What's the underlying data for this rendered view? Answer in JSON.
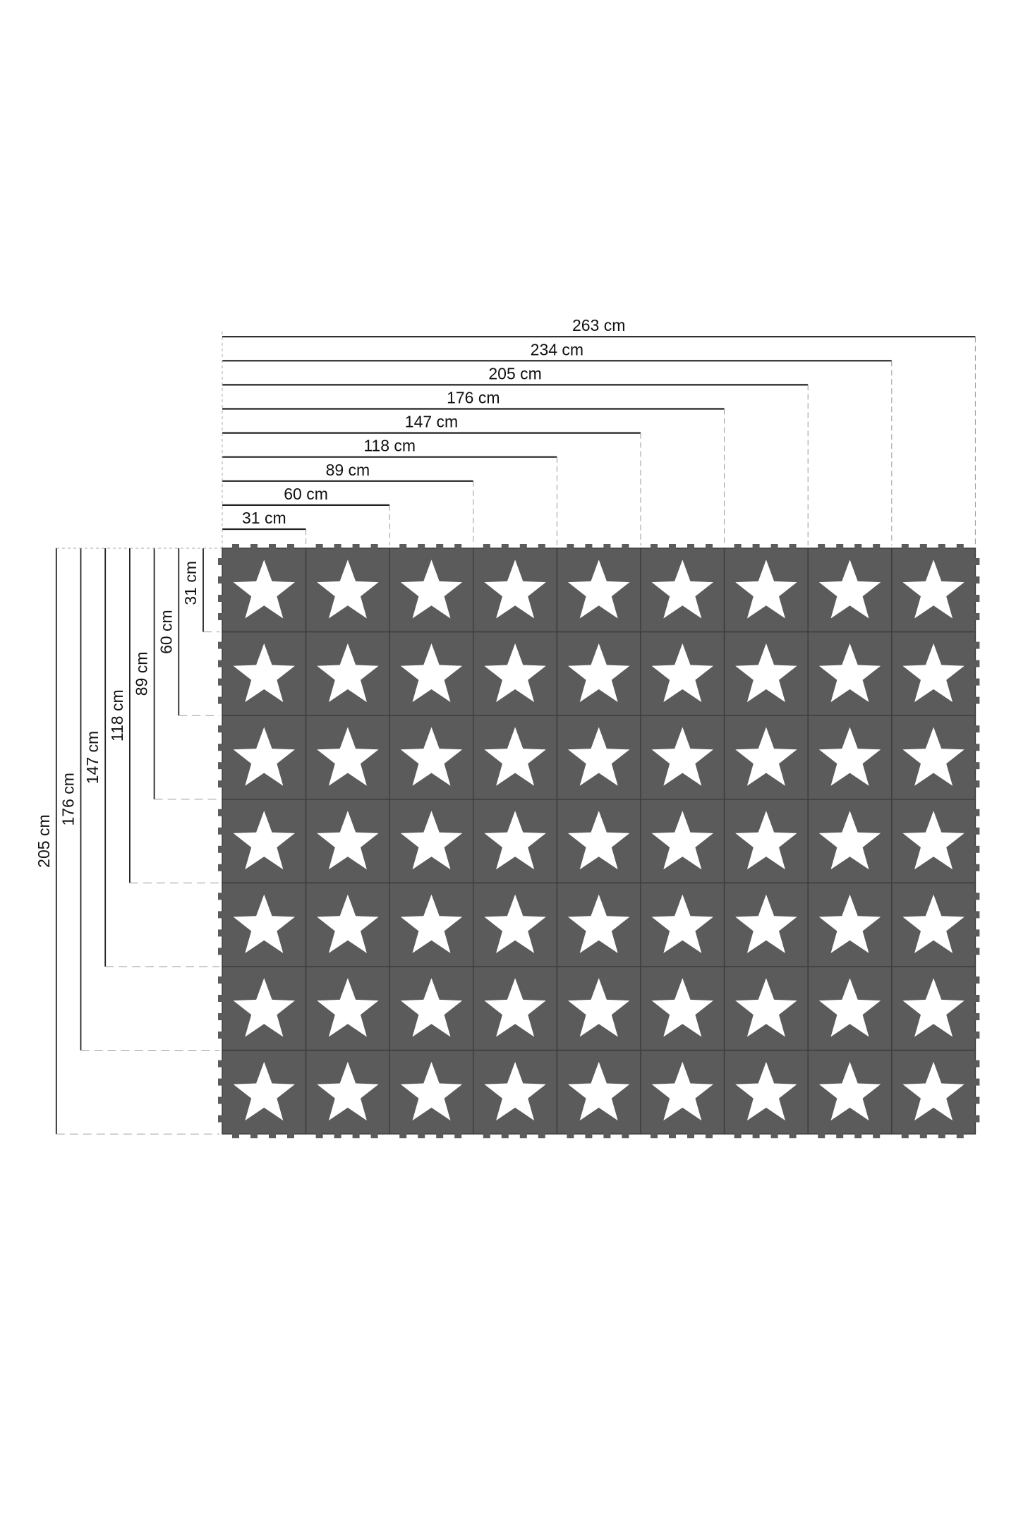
{
  "horizontal_dimensions": [
    "31 cm",
    "60 cm",
    "89 cm",
    "118 cm",
    "147 cm",
    "176 cm",
    "205 cm",
    "234 cm",
    "263 cm"
  ],
  "vertical_dimensions": [
    "31 cm",
    "60 cm",
    "89 cm",
    "118 cm",
    "147 cm",
    "176 cm",
    "205 cm"
  ],
  "mat": {
    "columns": 9,
    "rows": 7,
    "tile_color": "#5b5b5b",
    "star_color": "#ffffff",
    "tile_icon": "star-icon"
  }
}
